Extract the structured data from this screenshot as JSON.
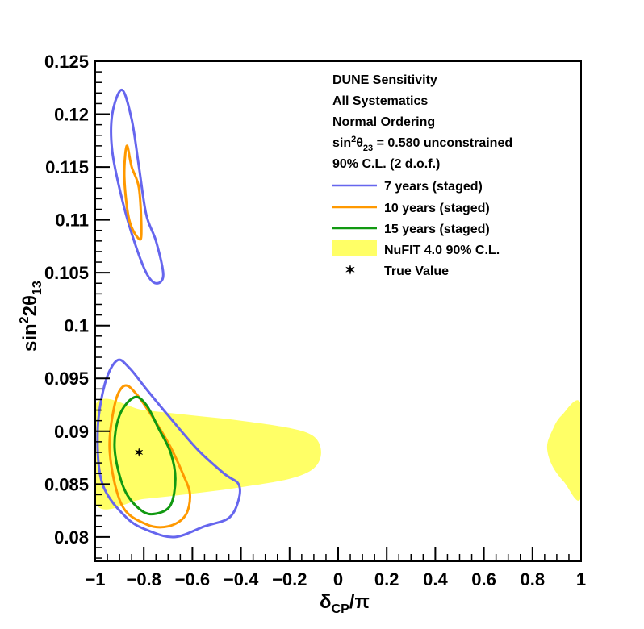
{
  "chart_data": {
    "type": "contour",
    "xlabel_main": "δ",
    "xlabel_sub": "CP",
    "xlabel_tail": "/π",
    "ylabel_main": "sin",
    "ylabel_sup": "2",
    "ylabel_mid": "2θ",
    "ylabel_sub": "13",
    "xlim": [
      -1,
      1
    ],
    "ylim": [
      0.0777,
      0.125
    ],
    "x_ticks": [
      {
        "v": -1,
        "label": "−1"
      },
      {
        "v": -0.8,
        "label": "−0.8"
      },
      {
        "v": -0.6,
        "label": "−0.6"
      },
      {
        "v": -0.4,
        "label": "−0.4"
      },
      {
        "v": -0.2,
        "label": "−0.2"
      },
      {
        "v": 0,
        "label": "0"
      },
      {
        "v": 0.2,
        "label": "0.2"
      },
      {
        "v": 0.4,
        "label": "0.4"
      },
      {
        "v": 0.6,
        "label": "0.6"
      },
      {
        "v": 0.8,
        "label": "0.8"
      },
      {
        "v": 1,
        "label": "1"
      }
    ],
    "y_ticks": [
      {
        "v": 0.08,
        "label": "0.08"
      },
      {
        "v": 0.085,
        "label": "0.085"
      },
      {
        "v": 0.09,
        "label": "0.09"
      },
      {
        "v": 0.095,
        "label": "0.095"
      },
      {
        "v": 0.1,
        "label": "0.1"
      },
      {
        "v": 0.105,
        "label": "0.105"
      },
      {
        "v": 0.11,
        "label": "0.11"
      },
      {
        "v": 0.115,
        "label": "0.115"
      },
      {
        "v": 0.12,
        "label": "0.12"
      },
      {
        "v": 0.125,
        "label": "0.125"
      }
    ],
    "legend_header": {
      "line1": "DUNE Sensitivity",
      "line2": "All Systematics",
      "line3": "Normal Ordering",
      "line4_pre": "sin",
      "line4_sup": "2",
      "line4_mid": "θ",
      "line4_sub": "23",
      "line4_post": " = 0.580 unconstrained",
      "line5": "90% C.L. (2 d.o.f.)"
    },
    "legend_placement": "top-right",
    "true_value": {
      "label": "True Value",
      "x": -0.82,
      "y": 0.088
    },
    "nufit_band": {
      "label": "NuFIT 4.0 90% C.L.",
      "color": "#ffff66",
      "regions": [
        [
          [
            -1,
            0.0925
          ],
          [
            -0.8,
            0.092
          ],
          [
            -0.6,
            0.0915
          ],
          [
            -0.4,
            0.091
          ],
          [
            -0.2,
            0.0903
          ],
          [
            -0.1,
            0.0895
          ],
          [
            -0.07,
            0.088
          ],
          [
            -0.1,
            0.0865
          ],
          [
            -0.2,
            0.0855
          ],
          [
            -0.4,
            0.0847
          ],
          [
            -0.6,
            0.0841
          ],
          [
            -0.8,
            0.0836
          ],
          [
            -1,
            0.0832
          ]
        ],
        [
          [
            1,
            0.0925
          ],
          [
            0.92,
            0.0915
          ],
          [
            0.88,
            0.09
          ],
          [
            0.86,
            0.0885
          ],
          [
            0.88,
            0.0868
          ],
          [
            0.93,
            0.0852
          ],
          [
            1,
            0.0838
          ]
        ]
      ]
    },
    "series": [
      {
        "name": "7 years (staged)",
        "color": "#6666ee",
        "contours": [
          [
            [
              -0.89,
              0.1223
            ],
            [
              -0.85,
              0.1195
            ],
            [
              -0.82,
              0.115
            ],
            [
              -0.79,
              0.1105
            ],
            [
              -0.75,
              0.108
            ],
            [
              -0.72,
              0.1048
            ],
            [
              -0.75,
              0.104
            ],
            [
              -0.79,
              0.105
            ],
            [
              -0.84,
              0.108
            ],
            [
              -0.89,
              0.112
            ],
            [
              -0.93,
              0.1165
            ],
            [
              -0.93,
              0.12
            ]
          ],
          [
            [
              -0.91,
              0.0967
            ],
            [
              -0.86,
              0.096
            ],
            [
              -0.79,
              0.094
            ],
            [
              -0.7,
              0.0915
            ],
            [
              -0.58,
              0.0883
            ],
            [
              -0.47,
              0.086
            ],
            [
              -0.41,
              0.085
            ],
            [
              -0.41,
              0.0835
            ],
            [
              -0.45,
              0.0818
            ],
            [
              -0.55,
              0.081
            ],
            [
              -0.67,
              0.08
            ],
            [
              -0.77,
              0.0805
            ],
            [
              -0.87,
              0.0818
            ],
            [
              -0.97,
              0.085
            ],
            [
              -0.99,
              0.09
            ],
            [
              -0.96,
              0.0945
            ]
          ]
        ]
      },
      {
        "name": "10 years (staged)",
        "color": "#ff9900",
        "contours": [
          [
            [
              -0.87,
              0.117
            ],
            [
              -0.85,
              0.115
            ],
            [
              -0.82,
              0.113
            ],
            [
              -0.81,
              0.109
            ],
            [
              -0.82,
              0.1082
            ],
            [
              -0.86,
              0.11
            ],
            [
              -0.88,
              0.114
            ]
          ],
          [
            [
              -0.88,
              0.0943
            ],
            [
              -0.83,
              0.0935
            ],
            [
              -0.76,
              0.0912
            ],
            [
              -0.69,
              0.0885
            ],
            [
              -0.64,
              0.086
            ],
            [
              -0.61,
              0.084
            ],
            [
              -0.63,
              0.082
            ],
            [
              -0.7,
              0.081
            ],
            [
              -0.79,
              0.0812
            ],
            [
              -0.89,
              0.083
            ],
            [
              -0.94,
              0.088
            ],
            [
              -0.92,
              0.0925
            ]
          ]
        ]
      },
      {
        "name": "15 years (staged)",
        "color": "#119911",
        "contours": [
          [
            [
              -0.84,
              0.0932
            ],
            [
              -0.79,
              0.0925
            ],
            [
              -0.74,
              0.0903
            ],
            [
              -0.69,
              0.088
            ],
            [
              -0.67,
              0.0855
            ],
            [
              -0.69,
              0.083
            ],
            [
              -0.75,
              0.0822
            ],
            [
              -0.81,
              0.0825
            ],
            [
              -0.88,
              0.0845
            ],
            [
              -0.92,
              0.0883
            ],
            [
              -0.9,
              0.0915
            ]
          ]
        ]
      }
    ]
  }
}
